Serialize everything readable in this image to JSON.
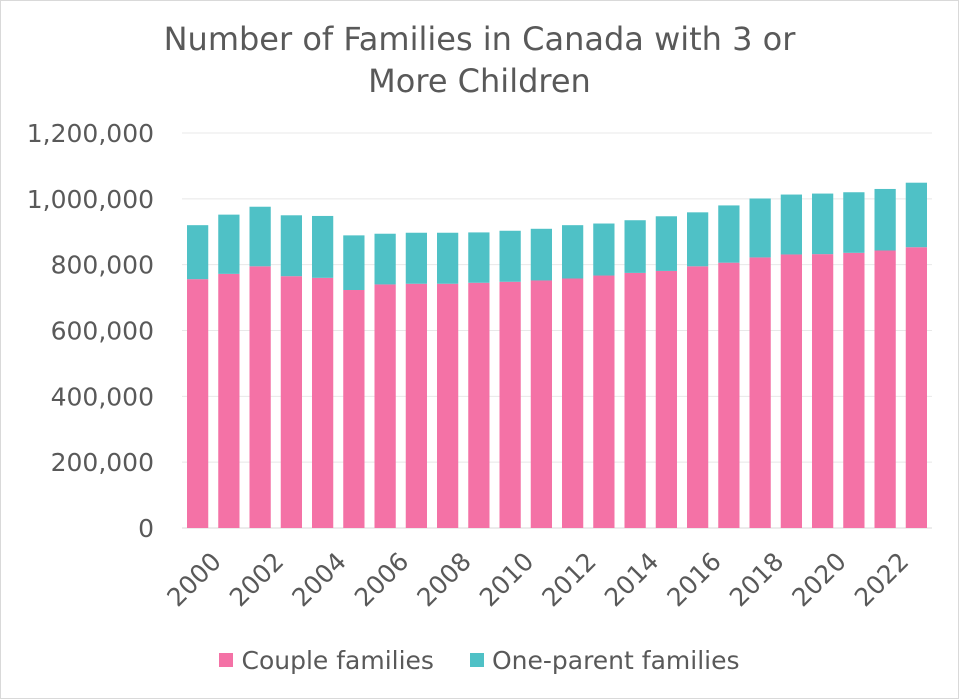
{
  "chart_data": {
    "type": "bar",
    "stacked": true,
    "title_lines": [
      "Number of Families in Canada with 3 or",
      "More Children"
    ],
    "xlabel": "",
    "ylabel": "",
    "ylim": [
      0,
      1200000
    ],
    "yticks": [
      0,
      200000,
      400000,
      600000,
      800000,
      1000000,
      1200000
    ],
    "ytick_labels": [
      "0",
      "200,000",
      "400,000",
      "600,000",
      "800,000",
      "1,000,000",
      "1,200,000"
    ],
    "categories": [
      "2000",
      "2001",
      "2002",
      "2003",
      "2004",
      "2005",
      "2006",
      "2007",
      "2008",
      "2009",
      "2010",
      "2011",
      "2012",
      "2013",
      "2014",
      "2015",
      "2016",
      "2017",
      "2018",
      "2019",
      "2020",
      "2021",
      "2022",
      "2023"
    ],
    "xtick_labels": [
      "2000",
      "2002",
      "2004",
      "2006",
      "2008",
      "2010",
      "2012",
      "2014",
      "2016",
      "2018",
      "2020",
      "2022"
    ],
    "grid": "horizontal",
    "legend_position": "bottom",
    "series": [
      {
        "name": "Couple families",
        "color": "#f472a6",
        "values": [
          756000,
          772000,
          795000,
          765000,
          760000,
          723000,
          740000,
          742000,
          742000,
          745000,
          748000,
          752000,
          758000,
          767000,
          775000,
          781000,
          795000,
          806000,
          822000,
          831000,
          832000,
          836000,
          843000,
          853000
        ]
      },
      {
        "name": "One-parent families",
        "color": "#4fc1c6",
        "values": [
          164000,
          180000,
          181000,
          185000,
          188000,
          166000,
          154000,
          155000,
          155000,
          153000,
          155000,
          157000,
          162000,
          158000,
          160000,
          166000,
          164000,
          174000,
          179000,
          182000,
          184000,
          184000,
          187000,
          196000
        ]
      }
    ]
  }
}
